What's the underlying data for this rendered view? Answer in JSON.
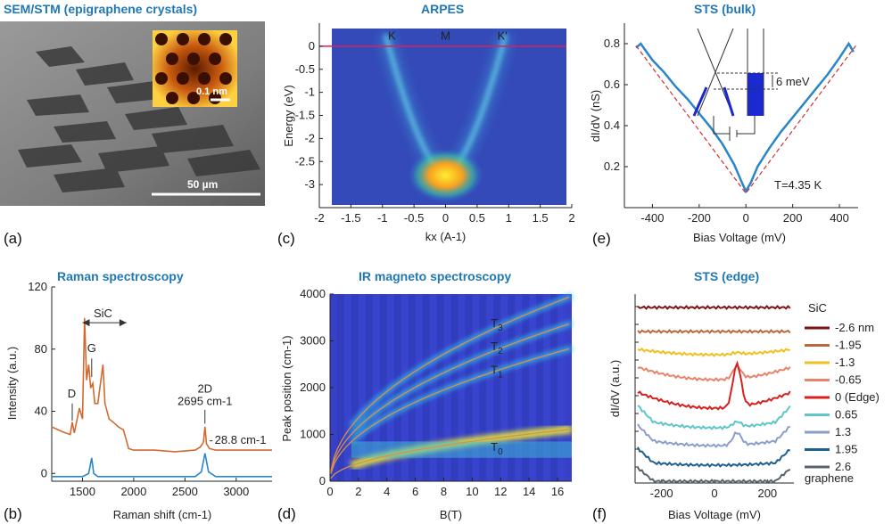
{
  "panels": {
    "a": {
      "letter": "(a)",
      "title": "SEM/STM (epigraphene crystals)",
      "scalebar_main": "50 µm",
      "scalebar_inset": "0.1 nm"
    },
    "c": {
      "letter": "(c)",
      "title": "ARPES"
    },
    "e": {
      "letter": "(e)",
      "title": "STS (bulk)"
    },
    "b": {
      "letter": "(b)",
      "title": "Raman spectroscopy"
    },
    "d": {
      "letter": "(d)",
      "title": "IR magneto spectroscopy"
    },
    "f": {
      "letter": "(f)",
      "title": "STS (edge)"
    }
  },
  "chart_data": [
    {
      "id": "c",
      "type": "heatmap",
      "title": "ARPES",
      "xlabel": "kx (A-1)",
      "ylabel": "Energy (eV)",
      "xlim": [
        -2,
        2
      ],
      "ylim": [
        -3.5,
        0.5
      ],
      "xticks": [
        "-2",
        "-1.5",
        "-1",
        "-0.5",
        "0",
        "0.5",
        "1",
        "1.5",
        "2"
      ],
      "yticks": [
        "0",
        "-0.5",
        "-1",
        "-1.5",
        "-2",
        "-2.5",
        "-3"
      ],
      "annotations": [
        "K",
        "M",
        "K'"
      ],
      "fermi_level": 0,
      "dirac_points": [
        {
          "k": -0.85,
          "E": 0
        },
        {
          "k": 0.9,
          "E": 0
        }
      ],
      "band_bottom": {
        "k": 0,
        "E": -2.8
      }
    },
    {
      "id": "e",
      "type": "line",
      "title": "STS (bulk)",
      "xlabel": "Bias Voltage (mV)",
      "ylabel": "dI/dV (nS)",
      "xlim": [
        -520,
        480
      ],
      "ylim": [
        0,
        0.9
      ],
      "xticks": [
        "-400",
        "-200",
        "0",
        "200",
        "400"
      ],
      "yticks": [
        "0.2",
        "0.4",
        "0.6",
        "0.8"
      ],
      "annotations": [
        "T=4.35 K",
        "6 meV"
      ],
      "series": [
        {
          "x": [
            -470,
            -450,
            -400,
            -350,
            -300,
            -250,
            -200,
            -150,
            -100,
            -50,
            -20,
            0,
            20,
            50,
            100,
            150,
            200,
            250,
            300,
            350,
            400,
            440,
            460
          ],
          "y": [
            0.78,
            0.8,
            0.72,
            0.66,
            0.59,
            0.53,
            0.46,
            0.39,
            0.31,
            0.21,
            0.13,
            0.08,
            0.12,
            0.2,
            0.29,
            0.37,
            0.44,
            0.51,
            0.58,
            0.65,
            0.73,
            0.8,
            0.76
          ]
        }
      ]
    },
    {
      "id": "b",
      "type": "line",
      "title": "Raman spectroscopy",
      "xlabel": "Raman shift (cm-1)",
      "ylabel": "Intensity (a.u.)",
      "xlim": [
        1200,
        3350
      ],
      "ylim": [
        -5,
        120
      ],
      "xticks": [
        "1500",
        "2000",
        "2500",
        "3000"
      ],
      "yticks": [
        "0",
        "40",
        "80",
        "120"
      ],
      "annotations": [
        "SiC",
        "D",
        "G",
        "2D",
        "2695 cm-1",
        "28.8 cm-1"
      ],
      "series": [
        {
          "name": "orange",
          "x": [
            1200,
            1300,
            1380,
            1400,
            1420,
            1470,
            1500,
            1520,
            1540,
            1560,
            1580,
            1600,
            1620,
            1650,
            1680,
            1700,
            1720,
            1760,
            1800,
            1850,
            1900,
            1950,
            2000,
            2200,
            2400,
            2600,
            2650,
            2680,
            2695,
            2710,
            2740,
            2800,
            3000,
            3200,
            3350
          ],
          "y": [
            30,
            27,
            25,
            33,
            26,
            42,
            35,
            100,
            60,
            70,
            55,
            58,
            45,
            45,
            60,
            70,
            45,
            35,
            33,
            30,
            28,
            16,
            15,
            15,
            14,
            15,
            17,
            20,
            30,
            19,
            16,
            15,
            15,
            15,
            15
          ]
        },
        {
          "name": "blue",
          "x": [
            1200,
            1400,
            1500,
            1560,
            1590,
            1610,
            1650,
            1800,
            2000,
            2400,
            2600,
            2660,
            2695,
            2730,
            2800,
            3000,
            3350
          ],
          "y": [
            -2,
            -2,
            -2,
            0,
            10,
            0,
            -2,
            -2,
            -2,
            -2,
            -2,
            1,
            13,
            1,
            -2,
            -2,
            -2
          ]
        }
      ]
    },
    {
      "id": "d",
      "type": "heatmap",
      "title": "IR magneto spectroscopy",
      "xlabel": "B(T)",
      "ylabel": "Peak position (cm-1)",
      "xlim": [
        0,
        17
      ],
      "ylim": [
        0,
        4000
      ],
      "xticks": [
        "0",
        "2",
        "4",
        "6",
        "8",
        "10",
        "12",
        "14",
        "16"
      ],
      "yticks": [
        "0",
        "1000",
        "2000",
        "3000",
        "4000"
      ],
      "annotations": [
        "T3",
        "T2",
        "T1",
        "T0"
      ],
      "transitions": [
        {
          "name": "T0",
          "coef": 270
        },
        {
          "name": "T1",
          "coef": 690
        },
        {
          "name": "T2",
          "coef": 820
        },
        {
          "name": "T3",
          "coef": 960
        }
      ]
    },
    {
      "id": "f",
      "type": "line",
      "title": "STS (edge)",
      "xlabel": "Bias Voltage (mV)",
      "ylabel": "dI/dV (a.u.)",
      "xlim": [
        -300,
        300
      ],
      "xticks": [
        "-200",
        "0",
        "200"
      ],
      "legend_header": "SiC",
      "legend_footer": "graphene",
      "series": [
        {
          "name": "-2.6 nm",
          "color": "#7b1515"
        },
        {
          "name": "-1.95",
          "color": "#b86a3c"
        },
        {
          "name": "-1.3",
          "color": "#f0c020"
        },
        {
          "name": "-0.65",
          "color": "#e8836e"
        },
        {
          "name": "0  (Edge)",
          "color": "#d82020"
        },
        {
          "name": "0.65",
          "color": "#5fc6c8"
        },
        {
          "name": "1.3",
          "color": "#8a9fc8"
        },
        {
          "name": "1.95",
          "color": "#1f5f8f"
        },
        {
          "name": "2.6",
          "color": "#5a6470"
        }
      ]
    }
  ]
}
